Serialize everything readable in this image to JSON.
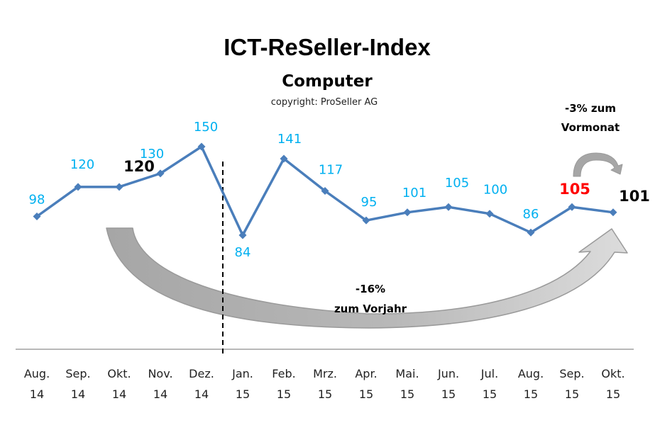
{
  "chart_data": {
    "type": "line",
    "title": "ICT-ReSeller-Index",
    "subtitle": "Computer",
    "copyright": "copyright: ProSeller AG",
    "categories": [
      [
        "Aug.",
        "14"
      ],
      [
        "Sep.",
        "14"
      ],
      [
        "Okt.",
        "14"
      ],
      [
        "Nov.",
        "14"
      ],
      [
        "Dez.",
        "14"
      ],
      [
        "Jan.",
        "15"
      ],
      [
        "Feb.",
        "15"
      ],
      [
        "Mrz.",
        "15"
      ],
      [
        "Apr.",
        "15"
      ],
      [
        "Mai.",
        "15"
      ],
      [
        "Jun.",
        "15"
      ],
      [
        "Jul.",
        "15"
      ],
      [
        "Aug.",
        "15"
      ],
      [
        "Sep.",
        "15"
      ],
      [
        "Okt.",
        "15"
      ]
    ],
    "series": [
      {
        "name": "ICT-ReSeller-Index Computer",
        "color": "#4a7ebb",
        "values": [
          98,
          120,
          120,
          130,
          150,
          84,
          141,
          117,
          95,
          101,
          105,
          100,
          86,
          105,
          101
        ]
      }
    ],
    "label_styles": [
      "normal",
      "normal",
      "highlight",
      "normal",
      "normal",
      "normal",
      "normal",
      "normal",
      "normal",
      "normal",
      "normal",
      "normal",
      "normal",
      "red",
      "highlight"
    ],
    "label_colors": {
      "normal": "#00b0f0",
      "highlight": "#000000",
      "red": "#ff0000"
    },
    "ylim": [
      0,
      160
    ],
    "xlabel": "",
    "ylabel": "",
    "grid": false,
    "year_divider_after": "Dez. 14",
    "annotations": {
      "month": {
        "line1": "-3% zum",
        "line2": "Vormonat"
      },
      "year": {
        "line1": "-16%",
        "line2": "zum Vorjahr"
      }
    }
  }
}
